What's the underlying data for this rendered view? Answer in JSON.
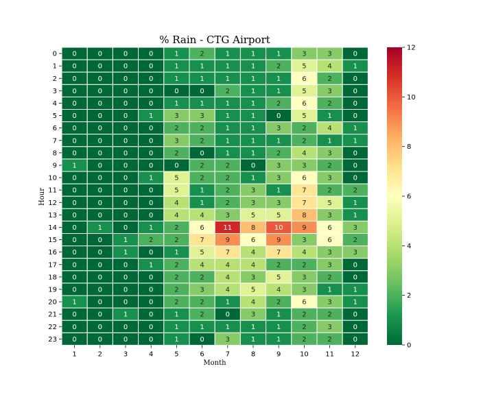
{
  "chart_data": {
    "type": "heatmap",
    "title": "% Rain - CTG Airport",
    "xlabel": "Month",
    "ylabel": "Hour",
    "x_categories": [
      "1",
      "2",
      "3",
      "4",
      "5",
      "6",
      "7",
      "8",
      "9",
      "10",
      "11",
      "12"
    ],
    "y_categories": [
      "0",
      "1",
      "2",
      "3",
      "4",
      "5",
      "6",
      "7",
      "8",
      "9",
      "10",
      "11",
      "12",
      "13",
      "14",
      "15",
      "16",
      "17",
      "18",
      "19",
      "20",
      "21",
      "22",
      "23"
    ],
    "values": [
      [
        0,
        0,
        0,
        0,
        1,
        2,
        1,
        1,
        1,
        3,
        3,
        0
      ],
      [
        0,
        0,
        0,
        0,
        1,
        1,
        1,
        1,
        2,
        5,
        4,
        1
      ],
      [
        0,
        0,
        0,
        0,
        1,
        1,
        1,
        1,
        1,
        6,
        2,
        0
      ],
      [
        0,
        0,
        0,
        0,
        0,
        0,
        2,
        1,
        1,
        5,
        3,
        0
      ],
      [
        0,
        0,
        0,
        0,
        1,
        1,
        1,
        1,
        2,
        6,
        2,
        0
      ],
      [
        0,
        0,
        0,
        1,
        3,
        3,
        1,
        1,
        0,
        5,
        1,
        0
      ],
      [
        0,
        0,
        0,
        0,
        2,
        2,
        1,
        1,
        3,
        2,
        4,
        1
      ],
      [
        0,
        0,
        0,
        0,
        3,
        2,
        1,
        1,
        1,
        2,
        1,
        1
      ],
      [
        0,
        0,
        0,
        0,
        2,
        0,
        1,
        1,
        2,
        4,
        3,
        0
      ],
      [
        1,
        0,
        0,
        0,
        0,
        2,
        2,
        0,
        3,
        3,
        2,
        0
      ],
      [
        0,
        0,
        0,
        1,
        5,
        2,
        2,
        1,
        3,
        6,
        3,
        0
      ],
      [
        0,
        0,
        0,
        0,
        5,
        1,
        2,
        3,
        1,
        7,
        2,
        2
      ],
      [
        0,
        0,
        0,
        0,
        4,
        1,
        2,
        3,
        3,
        7,
        5,
        1
      ],
      [
        0,
        0,
        0,
        0,
        4,
        4,
        3,
        5,
        5,
        8,
        3,
        1
      ],
      [
        0,
        1,
        0,
        1,
        2,
        6,
        11,
        8,
        10,
        9,
        6,
        3
      ],
      [
        0,
        0,
        1,
        2,
        2,
        7,
        9,
        6,
        9,
        3,
        6,
        2
      ],
      [
        0,
        0,
        1,
        0,
        1,
        5,
        7,
        4,
        7,
        4,
        3,
        3
      ],
      [
        0,
        0,
        0,
        1,
        2,
        4,
        4,
        4,
        2,
        2,
        3,
        0
      ],
      [
        0,
        0,
        0,
        0,
        2,
        2,
        4,
        3,
        5,
        3,
        2,
        0
      ],
      [
        0,
        0,
        0,
        0,
        2,
        3,
        4,
        5,
        4,
        3,
        1,
        1
      ],
      [
        1,
        0,
        0,
        0,
        2,
        2,
        1,
        4,
        2,
        6,
        3,
        1
      ],
      [
        0,
        0,
        1,
        0,
        1,
        2,
        0,
        3,
        1,
        2,
        2,
        0
      ],
      [
        0,
        0,
        0,
        0,
        1,
        1,
        1,
        1,
        1,
        2,
        3,
        0
      ],
      [
        0,
        0,
        0,
        0,
        1,
        0,
        3,
        1,
        1,
        2,
        2,
        0
      ]
    ],
    "colorbar": {
      "min": 0,
      "max": 12,
      "ticks": [
        0,
        2,
        4,
        6,
        8,
        10,
        12
      ],
      "colormap": "RdYlGn_r"
    },
    "grid": false,
    "legend": "colorbar-right"
  }
}
